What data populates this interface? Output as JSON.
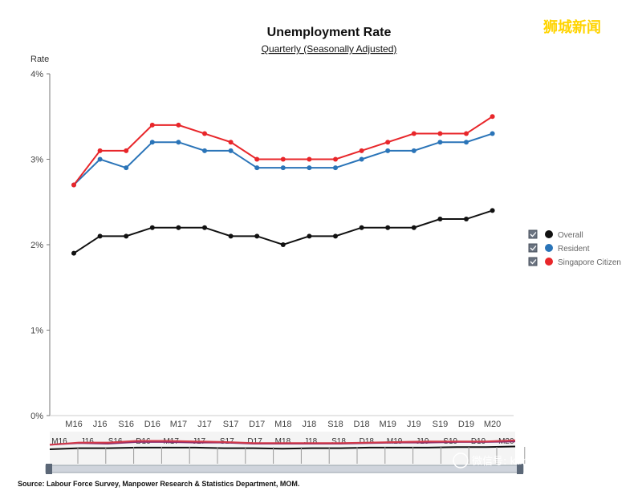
{
  "watermark": "狮城新闻",
  "wechat_label": "微信号: kanxinjiapo",
  "source_text": "Source: Labour Force Survey, Manpower Research & Statistics Department, MOM.",
  "chart_data": {
    "type": "line",
    "title": "Unemployment Rate",
    "subtitle": "Quarterly (Seasonally Adjusted)",
    "ylabel": "Rate",
    "xlabel": "",
    "ylim": [
      0,
      4
    ],
    "yticks": [
      0,
      1,
      2,
      3,
      4
    ],
    "ytick_labels": [
      "0%",
      "1%",
      "2%",
      "3%",
      "4%"
    ],
    "categories": [
      "M16",
      "J16",
      "S16",
      "D16",
      "M17",
      "J17",
      "S17",
      "D17",
      "M18",
      "J18",
      "S18",
      "D18",
      "M19",
      "J19",
      "S19",
      "D19",
      "M20"
    ],
    "legend_position": "right",
    "series": [
      {
        "name": "Overall",
        "color": "#111111",
        "values": [
          1.9,
          2.1,
          2.1,
          2.2,
          2.2,
          2.2,
          2.1,
          2.1,
          2.0,
          2.1,
          2.1,
          2.2,
          2.2,
          2.2,
          2.3,
          2.3,
          2.4
        ]
      },
      {
        "name": "Resident",
        "color": "#2a74b8",
        "values": [
          2.7,
          3.0,
          2.9,
          3.2,
          3.2,
          3.1,
          3.1,
          2.9,
          2.9,
          2.9,
          2.9,
          3.0,
          3.1,
          3.1,
          3.2,
          3.2,
          3.3
        ]
      },
      {
        "name": "Singapore Citizen",
        "color": "#e8262a",
        "values": [
          2.7,
          3.1,
          3.1,
          3.4,
          3.4,
          3.3,
          3.2,
          3.0,
          3.0,
          3.0,
          3.0,
          3.1,
          3.2,
          3.3,
          3.3,
          3.3,
          3.5
        ]
      }
    ],
    "navigator": {
      "labels": [
        "M16",
        "J16",
        "S16",
        "D16",
        "M17",
        "J17",
        "S17",
        "D17",
        "M18",
        "J18",
        "S18",
        "D18",
        "M19",
        "J19",
        "S19",
        "D19",
        "M20"
      ]
    },
    "grid": false
  }
}
